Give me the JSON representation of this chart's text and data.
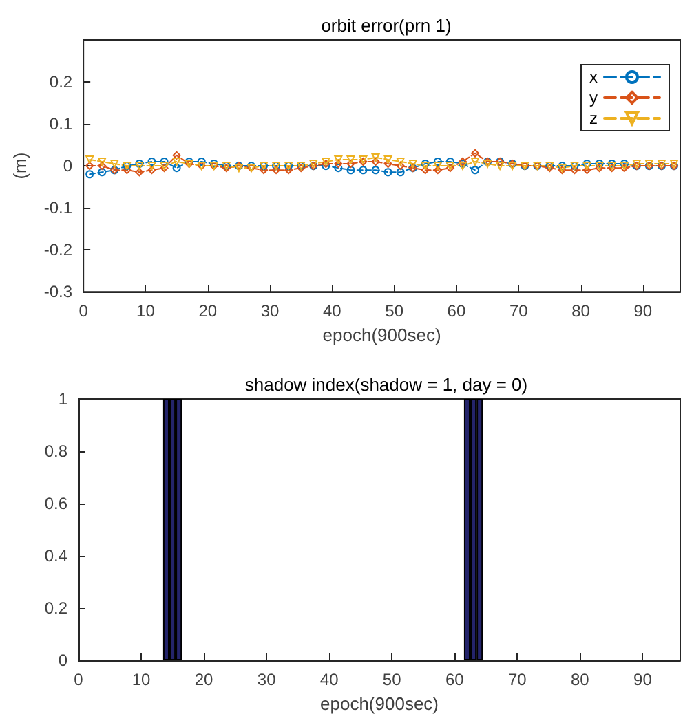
{
  "chart_data": [
    {
      "type": "line",
      "title": "orbit error(prn 1)",
      "xlabel": "epoch(900sec)",
      "ylabel": "(m)",
      "xlim": [
        0,
        96
      ],
      "xticks": [
        0,
        10,
        20,
        30,
        40,
        50,
        60,
        70,
        80,
        90
      ],
      "ylim": [
        -0.3,
        0.3
      ],
      "yticks": [
        -0.3,
        -0.2,
        -0.1,
        0,
        0.1,
        0.2
      ],
      "grid": false,
      "legend": "top right",
      "line_style": "dashed",
      "x": [
        1,
        3,
        5,
        7,
        9,
        11,
        13,
        15,
        17,
        19,
        21,
        23,
        25,
        27,
        29,
        31,
        33,
        35,
        37,
        39,
        41,
        43,
        45,
        47,
        49,
        51,
        53,
        55,
        57,
        59,
        61,
        63,
        65,
        67,
        69,
        71,
        73,
        75,
        77,
        79,
        81,
        83,
        85,
        87,
        89,
        91,
        93,
        95
      ],
      "series": [
        {
          "name": "x",
          "color": "#0072bd",
          "marker": "circle",
          "values": [
            -0.02,
            -0.015,
            -0.01,
            0,
            0.005,
            0.01,
            0.01,
            -0.005,
            0.01,
            0.01,
            0.005,
            0,
            0,
            0,
            0,
            0,
            0,
            0,
            0,
            0,
            -0.005,
            -0.01,
            -0.01,
            -0.01,
            -0.015,
            -0.015,
            -0.005,
            0.005,
            0.01,
            0.01,
            0.005,
            -0.01,
            0.01,
            0.01,
            0.005,
            0,
            0,
            0,
            0,
            0,
            0.005,
            0.005,
            0.005,
            0.005,
            0,
            0,
            0,
            0
          ]
        },
        {
          "name": "y",
          "color": "#d95319",
          "marker": "diamond",
          "values": [
            0,
            0,
            -0.01,
            -0.01,
            -0.015,
            -0.01,
            -0.005,
            0.025,
            0.005,
            0,
            0,
            -0.005,
            0,
            -0.005,
            -0.01,
            -0.01,
            -0.01,
            -0.005,
            0,
            0.005,
            0.005,
            0.005,
            0.01,
            0.01,
            0.005,
            0,
            -0.005,
            -0.01,
            -0.01,
            -0.005,
            0.01,
            0.03,
            0.01,
            0.01,
            0.005,
            0,
            0,
            -0.005,
            -0.01,
            -0.01,
            -0.01,
            -0.005,
            -0.005,
            -0.005,
            0,
            0,
            0,
            0
          ]
        },
        {
          "name": "z",
          "color": "#edb120",
          "marker": "triangle-down",
          "values": [
            0.015,
            0.01,
            0.005,
            0,
            0,
            0,
            0,
            0.01,
            0.005,
            0,
            0,
            0,
            -0.005,
            -0.005,
            0,
            0,
            0,
            0,
            0.005,
            0.01,
            0.015,
            0.015,
            0.015,
            0.02,
            0.015,
            0.01,
            0.005,
            0,
            0,
            0,
            0,
            0.01,
            0.005,
            0,
            0,
            0,
            0,
            0,
            -0.005,
            0,
            0,
            0,
            0,
            0,
            0.005,
            0.005,
            0.005,
            0.005
          ]
        }
      ]
    },
    {
      "type": "bar",
      "title": "shadow index(shadow = 1, day = 0)",
      "xlabel": "epoch(900sec)",
      "xlim": [
        0,
        96
      ],
      "xticks": [
        0,
        10,
        20,
        30,
        40,
        50,
        60,
        70,
        80,
        90
      ],
      "ylim": [
        0,
        1
      ],
      "yticks": [
        0,
        0.2,
        0.4,
        0.6,
        0.8,
        1
      ],
      "grid": false,
      "x": [
        14,
        15,
        16,
        62,
        63,
        64
      ],
      "values": [
        1,
        1,
        1,
        1,
        1,
        1
      ],
      "color": "#24246b"
    }
  ]
}
